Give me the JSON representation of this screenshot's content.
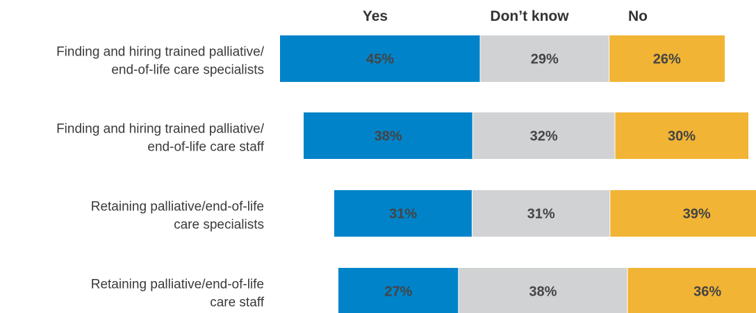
{
  "chart_data": {
    "type": "bar",
    "stacked": true,
    "orientation": "horizontal",
    "categories": [
      "Finding and hiring trained palliative/ end-of-life care specialists",
      "Finding and hiring trained palliative/ end-of-life care staff",
      "Retaining palliative/end-of-life care specialists",
      "Retaining palliative/end-of-life care staff"
    ],
    "category_lines": [
      [
        "Finding and hiring trained palliative/",
        "end-of-life care specialists"
      ],
      [
        "Finding and hiring trained palliative/",
        "end-of-life care staff"
      ],
      [
        "Retaining palliative/end-of-life",
        "care specialists"
      ],
      [
        "Retaining palliative/end-of-life",
        "care staff"
      ]
    ],
    "series": [
      {
        "name": "Yes",
        "values": [
          45,
          38,
          31,
          27
        ],
        "labels": [
          "45%",
          "38%",
          "31%",
          "27%"
        ],
        "color": "#0083c9"
      },
      {
        "name": "Don’t know",
        "values": [
          29,
          32,
          31,
          38
        ],
        "labels": [
          "29%",
          "32%",
          "31%",
          "38%"
        ],
        "color": "#d1d2d4"
      },
      {
        "name": "No",
        "values": [
          26,
          30,
          39,
          36
        ],
        "labels": [
          "26%",
          "30%",
          "39%",
          "36%"
        ],
        "color": "#f2b434"
      }
    ],
    "title": "",
    "xlabel": "",
    "ylabel": "",
    "legend_position": "top",
    "grid": false
  }
}
